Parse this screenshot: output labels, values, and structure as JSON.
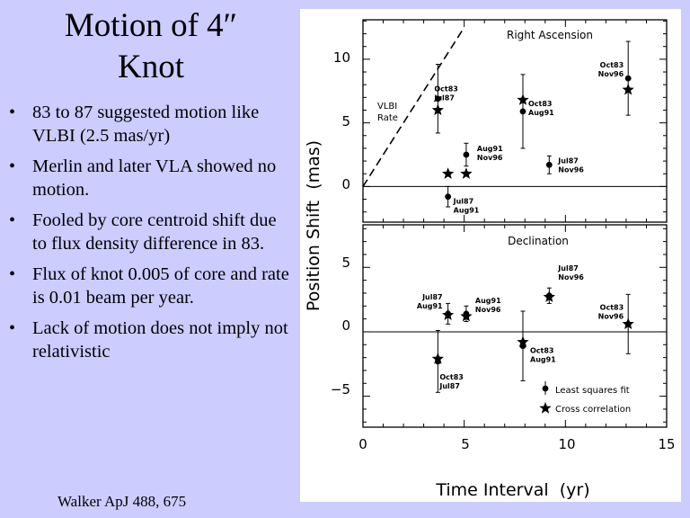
{
  "slide": {
    "title_line1": "Motion of 4″",
    "title_line2": "Knot",
    "bullets": [
      "83 to 87 suggested motion like VLBI  (2.5 mas/yr)",
      "Merlin and later VLA showed no motion.",
      "Fooled by core centroid shift due to flux density difference in 83.",
      "Flux of knot 0.005 of core and rate is 0.01 beam per year.",
      "Lack of motion does not imply not relativistic"
    ],
    "citation": "Walker ApJ 488, 675"
  },
  "colors": {
    "background": "#ccccff",
    "plot_bg": "#ffffff",
    "ink": "#000000"
  },
  "chart_data": {
    "type": "scatter",
    "xlabel": "Time Interval  (yr)",
    "ylabel": "Position Shift  (mas)",
    "xlim": [
      0,
      15
    ],
    "x_ticks": [
      "0",
      "5",
      "10",
      "15"
    ],
    "legend": {
      "fit": "Least squares fit",
      "cc": "Cross correlation"
    },
    "panels": [
      {
        "name": "ra",
        "title": "Right Ascension",
        "ylim": [
          -2.8,
          13.1
        ],
        "y_ticks": [
          "0",
          "5",
          "10"
        ],
        "y_tick_values": [
          0,
          5,
          10
        ],
        "rate_label_1": "VLBI",
        "rate_label_2": "Rate",
        "rate_line": {
          "slope_mas_per_yr": 2.5,
          "x": [
            0,
            5
          ]
        },
        "lsq_points": [
          {
            "x": 3.7,
            "y": 6.9,
            "err": 2.7,
            "label_1": "Oct83",
            "label_2": "Jul87"
          },
          {
            "x": 5.1,
            "y": 2.5,
            "err": 0.9,
            "label_1": "Aug91",
            "label_2": "Nov96"
          },
          {
            "x": 4.2,
            "y": -0.8,
            "err": 0.8,
            "label_1": "Jul87",
            "label_2": "Aug91"
          },
          {
            "x": 7.9,
            "y": 5.9,
            "err": 2.9,
            "label_1": "Oct83",
            "label_2": "Aug91"
          },
          {
            "x": 9.2,
            "y": 1.7,
            "err": 0.7,
            "label_1": "Jul87",
            "label_2": "Nov96"
          },
          {
            "x": 13.1,
            "y": 8.5,
            "err": 2.9,
            "label_1": "Oct83",
            "label_2": "Nov96"
          }
        ],
        "cc_points": [
          {
            "x": 3.7,
            "y": 6.0
          },
          {
            "x": 4.2,
            "y": 1.0
          },
          {
            "x": 5.1,
            "y": 1.0
          },
          {
            "x": 7.9,
            "y": 6.8
          },
          {
            "x": 13.1,
            "y": 7.6
          }
        ]
      },
      {
        "name": "dec",
        "title": "Declination",
        "ylim": [
          -7.4,
          8.3
        ],
        "y_ticks": [
          "−5",
          "0",
          "5"
        ],
        "y_tick_values": [
          -5,
          0,
          5
        ],
        "lsq_points": [
          {
            "x": 3.7,
            "y": -2.3,
            "err": 2.4,
            "label_1": "Oct83",
            "label_2": "Jul87"
          },
          {
            "x": 4.2,
            "y": 1.4,
            "err": 0.8,
            "label_1": "Jul87",
            "label_2": "Aug91"
          },
          {
            "x": 5.1,
            "y": 1.4,
            "err": 0.6,
            "label_1": "Aug91",
            "label_2": "Nov96"
          },
          {
            "x": 7.9,
            "y": -1.1,
            "err": 2.7,
            "label_1": "Oct83",
            "label_2": "Aug91"
          },
          {
            "x": 9.2,
            "y": 2.8,
            "err": 0.6,
            "label_1": "Jul87",
            "label_2": "Nov96"
          },
          {
            "x": 13.1,
            "y": 0.6,
            "err": 2.3,
            "label_1": "Oct83",
            "label_2": "Nov96"
          }
        ],
        "cc_points": [
          {
            "x": 3.7,
            "y": -2.1
          },
          {
            "x": 4.2,
            "y": 1.3
          },
          {
            "x": 5.1,
            "y": 1.2
          },
          {
            "x": 7.9,
            "y": -0.8
          },
          {
            "x": 9.2,
            "y": 2.7
          },
          {
            "x": 13.1,
            "y": 0.6
          }
        ]
      }
    ]
  }
}
